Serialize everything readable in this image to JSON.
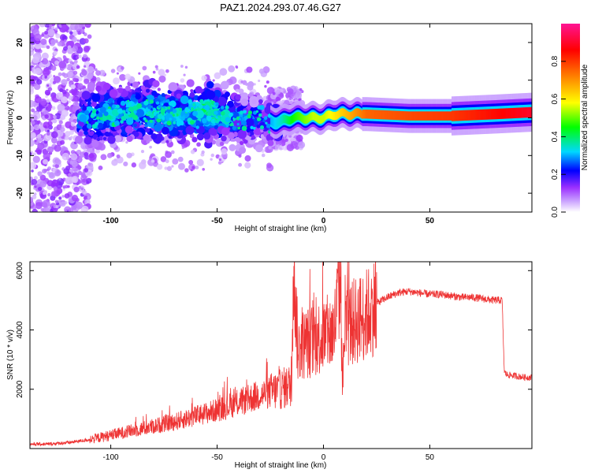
{
  "title": "PAZ1.2024.293.07.46.G27",
  "chart_data": [
    {
      "type": "heatmap",
      "xlabel": "Height of straight line (km)",
      "ylabel": "Frequency (Hz)",
      "xlim": [
        -138,
        98
      ],
      "ylim": [
        -25,
        25
      ],
      "x_ticks": [
        -100,
        -50,
        0,
        50
      ],
      "y_ticks": [
        -20,
        -10,
        0,
        10,
        20
      ],
      "colorbar": {
        "label": "Normalized spectral amplitude",
        "range": [
          0,
          1
        ],
        "ticks": [
          0.0,
          0.2,
          0.4,
          0.6,
          0.8
        ],
        "colors": [
          "#ffffff",
          "#9b30ff",
          "#0000ff",
          "#00d8ff",
          "#00ff00",
          "#ffff00",
          "#ff8000",
          "#ff0000",
          "#ff1493"
        ]
      },
      "ridge": {
        "x": [
          -115,
          -100,
          -85,
          -70,
          -55,
          -40,
          -30,
          -25,
          -20,
          -15,
          -10,
          -5,
          0,
          5,
          10,
          15,
          20,
          40,
          60,
          80,
          98
        ],
        "frequency": [
          0,
          1,
          2,
          1,
          2,
          0,
          0,
          -1,
          -1,
          0,
          0,
          0,
          0,
          1,
          1,
          1,
          1,
          0.5,
          0.5,
          1,
          1.5
        ],
        "amplitude": [
          0.35,
          0.4,
          0.4,
          0.4,
          0.45,
          0.35,
          0.3,
          0.3,
          0.35,
          0.45,
          0.5,
          0.55,
          0.55,
          0.6,
          0.65,
          0.7,
          0.75,
          0.78,
          0.8,
          0.85,
          0.9
        ]
      }
    },
    {
      "type": "line",
      "xlabel": "Height of straight line (km)",
      "ylabel": "SNR (10 * v/v)",
      "xlim": [
        -138,
        98
      ],
      "ylim": [
        0,
        6300
      ],
      "x_ticks": [
        -100,
        -50,
        0,
        50
      ],
      "y_ticks": [
        2000,
        4000,
        6000
      ],
      "line_color": "#ee3333",
      "series": [
        {
          "x": [
            -138,
            -130,
            -120,
            -110,
            -100,
            -90,
            -80,
            -70,
            -60,
            -50,
            -40,
            -30,
            -25,
            -20,
            -15,
            -14,
            -12,
            -10,
            -5,
            0,
            5,
            8,
            9,
            10,
            15,
            20,
            25,
            30,
            35,
            40,
            45,
            50,
            55,
            60,
            65,
            70,
            75,
            80,
            84,
            85,
            86,
            90,
            95,
            98
          ],
          "values": [
            150,
            150,
            200,
            300,
            450,
            600,
            750,
            900,
            1100,
            1300,
            1550,
            1800,
            1900,
            2000,
            2150,
            6200,
            3300,
            3500,
            3650,
            3800,
            3950,
            5800,
            2100,
            4100,
            4300,
            4500,
            4900,
            5100,
            5250,
            5300,
            5250,
            5200,
            5200,
            5150,
            5100,
            5100,
            5050,
            5000,
            5000,
            2600,
            2500,
            2450,
            2400,
            2400
          ]
        }
      ]
    }
  ]
}
